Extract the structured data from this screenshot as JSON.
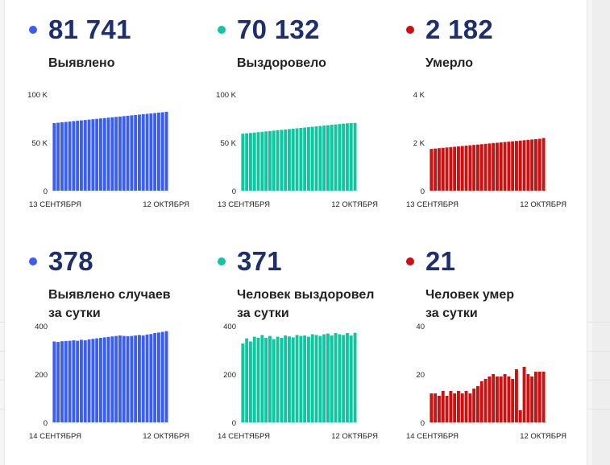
{
  "colors": {
    "blue": "#3a5ef5",
    "green": "#0ec7a0",
    "red": "#cc1111",
    "title": "#1d2f6f"
  },
  "panels": [
    {
      "value": "81 741",
      "label_lines": [
        "Выявлено"
      ],
      "color_key": "blue",
      "chart_data": {
        "type": "bar",
        "ylim": [
          0,
          100000
        ],
        "yticks": [
          {
            "v": 0,
            "label": "0"
          },
          {
            "v": 50000,
            "label": "50 K"
          },
          {
            "v": 100000,
            "label": "100 K"
          }
        ],
        "xlabels": [
          "13 СЕНТЯБРЯ",
          "12 ОКТЯБРЯ"
        ],
        "values": [
          70000,
          70400,
          70800,
          71200,
          71600,
          72000,
          72400,
          72800,
          73200,
          73600,
          74000,
          74400,
          74800,
          75200,
          75600,
          76000,
          76400,
          76800,
          77200,
          77600,
          78000,
          78400,
          78800,
          79200,
          79600,
          80000,
          80400,
          80800,
          81200,
          81741
        ]
      }
    },
    {
      "value": "70 132",
      "label_lines": [
        "Выздоровело"
      ],
      "color_key": "green",
      "chart_data": {
        "type": "bar",
        "ylim": [
          0,
          100000
        ],
        "yticks": [
          {
            "v": 0,
            "label": "0"
          },
          {
            "v": 50000,
            "label": "50 K"
          },
          {
            "v": 100000,
            "label": "100 K"
          }
        ],
        "xlabels": [
          "13 СЕНТЯБРЯ",
          "12 ОКТЯБРЯ"
        ],
        "values": [
          59000,
          59400,
          59800,
          60200,
          60600,
          61000,
          61400,
          61800,
          62200,
          62600,
          63000,
          63400,
          63800,
          64200,
          64600,
          65000,
          65400,
          65800,
          66200,
          66600,
          67000,
          67400,
          67800,
          68200,
          68600,
          69000,
          69400,
          69800,
          70000,
          70132
        ]
      }
    },
    {
      "value": "2 182",
      "label_lines": [
        "Умерло"
      ],
      "color_key": "red",
      "chart_data": {
        "type": "bar",
        "ylim": [
          0,
          4000
        ],
        "yticks": [
          {
            "v": 0,
            "label": "0"
          },
          {
            "v": 2000,
            "label": "2 K"
          },
          {
            "v": 4000,
            "label": "4 K"
          }
        ],
        "xlabels": [
          "13 СЕНТЯБРЯ",
          "12 ОКТЯБРЯ"
        ],
        "values": [
          1730,
          1745,
          1760,
          1775,
          1790,
          1805,
          1820,
          1835,
          1850,
          1865,
          1880,
          1895,
          1910,
          1925,
          1940,
          1955,
          1970,
          1985,
          2000,
          2015,
          2030,
          2045,
          2060,
          2075,
          2090,
          2105,
          2120,
          2135,
          2150,
          2182
        ]
      }
    },
    {
      "value": "378",
      "label_lines": [
        "Выявлено случаев",
        "за сутки"
      ],
      "color_key": "blue",
      "chart_data": {
        "type": "bar",
        "ylim": [
          0,
          400
        ],
        "yticks": [
          {
            "v": 0,
            "label": "0"
          },
          {
            "v": 200,
            "label": "200"
          },
          {
            "v": 400,
            "label": "400"
          }
        ],
        "xlabels": [
          "14 СЕНТЯБРЯ",
          "12 ОКТЯБРЯ"
        ],
        "values": [
          335,
          333,
          336,
          337,
          338,
          340,
          338,
          342,
          340,
          344,
          346,
          348,
          350,
          352,
          354,
          356,
          358,
          360,
          358,
          357,
          358,
          360,
          362,
          360,
          364,
          366,
          370,
          372,
          375,
          378
        ]
      }
    },
    {
      "value": "371",
      "label_lines": [
        "Человек выздоровел",
        "за сутки"
      ],
      "color_key": "green",
      "chart_data": {
        "type": "bar",
        "ylim": [
          0,
          400
        ],
        "yticks": [
          {
            "v": 0,
            "label": "0"
          },
          {
            "v": 200,
            "label": "200"
          },
          {
            "v": 400,
            "label": "400"
          }
        ],
        "xlabels": [
          "14 СЕНТЯБРЯ",
          "12 ОКТЯБРЯ"
        ],
        "values": [
          327,
          348,
          335,
          355,
          350,
          362,
          350,
          358,
          345,
          355,
          350,
          360,
          356,
          352,
          362,
          358,
          360,
          355,
          365,
          362,
          358,
          365,
          368,
          360,
          370,
          365,
          362,
          370,
          360,
          371
        ]
      }
    },
    {
      "value": "21",
      "label_lines": [
        "Человек умер",
        "за сутки"
      ],
      "color_key": "red",
      "chart_data": {
        "type": "bar",
        "ylim": [
          0,
          40
        ],
        "yticks": [
          {
            "v": 0,
            "label": "0"
          },
          {
            "v": 20,
            "label": "20"
          },
          {
            "v": 40,
            "label": "40"
          }
        ],
        "xlabels": [
          "14 СЕНТЯБРЯ",
          "12 ОКТЯБРЯ"
        ],
        "values": [
          12,
          12,
          11,
          13,
          11,
          13,
          12,
          13,
          12,
          13,
          12,
          14,
          15,
          17,
          18,
          19,
          20,
          19,
          19,
          20,
          19,
          18,
          22,
          5,
          23,
          20,
          19,
          21,
          21,
          21
        ]
      }
    }
  ]
}
